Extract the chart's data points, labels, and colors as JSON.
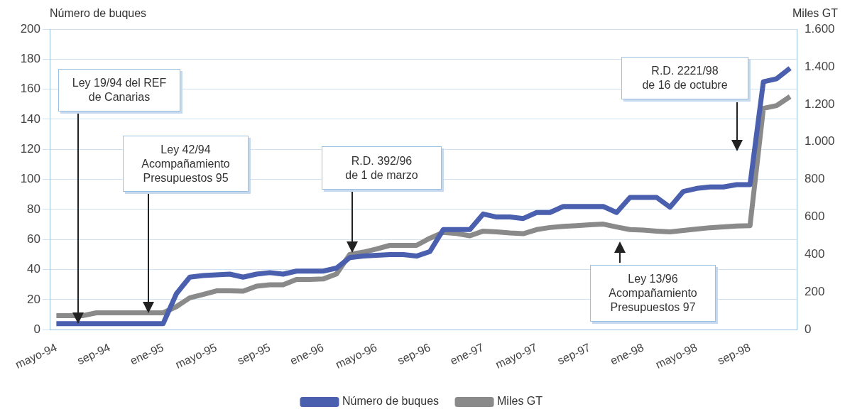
{
  "chart_data": {
    "type": "line",
    "ylabel": "Número de buques",
    "y2label": "Miles GT",
    "categories": [
      "mayo-94",
      null,
      null,
      null,
      "sep-94",
      null,
      null,
      null,
      "ene-95",
      null,
      null,
      null,
      "mayo-95",
      null,
      null,
      null,
      "sep-95",
      null,
      null,
      null,
      "ene-96",
      null,
      null,
      null,
      "mayo-96",
      null,
      null,
      null,
      "sep-96",
      null,
      null,
      null,
      "ene-97",
      null,
      null,
      null,
      "mayo-97",
      null,
      null,
      null,
      "sep-97",
      null,
      null,
      null,
      "ene-98",
      null,
      null,
      null,
      "mayo-98",
      null,
      null,
      null,
      "sep-98",
      null,
      null,
      null
    ],
    "series": [
      {
        "name": "Número de buques",
        "color": "#4a5fae",
        "values": [
          4,
          4,
          4,
          4,
          4,
          4,
          4,
          4,
          4,
          24,
          35,
          36,
          36.5,
          37,
          35,
          37,
          38,
          37,
          39,
          39,
          39,
          41,
          48,
          49,
          49.5,
          50,
          50,
          49,
          52,
          66.6,
          66.6,
          66.6,
          77,
          75,
          75,
          74,
          78,
          78,
          82,
          82,
          82,
          82,
          78,
          88,
          88,
          88,
          81.5,
          92,
          94,
          95,
          95,
          96.5,
          96.5,
          165,
          167,
          174
        ]
      },
      {
        "name": "Miles GT",
        "color": "#8a8a8a",
        "axis": "y2",
        "values": [
          75,
          75,
          75,
          90,
          90,
          90,
          90,
          90,
          90,
          123,
          170,
          188,
          207,
          207,
          205,
          232,
          239,
          239,
          268,
          268,
          270,
          297,
          401,
          413,
          430,
          449,
          449,
          449,
          487,
          518,
          512,
          500,
          525,
          521,
          515,
          511,
          533,
          544,
          550,
          554,
          559,
          562,
          547,
          533,
          530,
          525,
          521,
          528,
          536,
          543,
          547,
          552,
          554,
          1178,
          1193,
          1241
        ]
      }
    ],
    "ylim": [
      0,
      200
    ],
    "yticks": [
      0,
      20,
      40,
      60,
      80,
      100,
      120,
      140,
      160,
      180,
      200
    ],
    "y2lim": [
      0,
      1600
    ],
    "y2ticks": [
      0,
      {
        "value": 200,
        "label": "200"
      },
      {
        "value": 400,
        "label": "400"
      },
      {
        "value": 600,
        "label": "600"
      },
      {
        "value": 800,
        "label": "800"
      },
      {
        "value": 1000,
        "label": "1.000"
      },
      {
        "value": 1200,
        "label": "1.200"
      },
      {
        "value": 1400,
        "label": "1.400"
      },
      {
        "value": 1600,
        "label": "1.600"
      }
    ],
    "grid": "y",
    "legend": "bottom",
    "marker": "none",
    "line_style": "solid",
    "annotations": [
      "Ley 19/94 del REF\nde Canarias",
      "Ley 42/94\nAcompañamiento\nPresupuestos 95",
      "R.D. 392/96\nde 1 de marzo",
      "R.D. 2221/98\nde 16 de octubre",
      "Ley 13/96\nAcompañamiento\nPresupuestos 97"
    ]
  }
}
